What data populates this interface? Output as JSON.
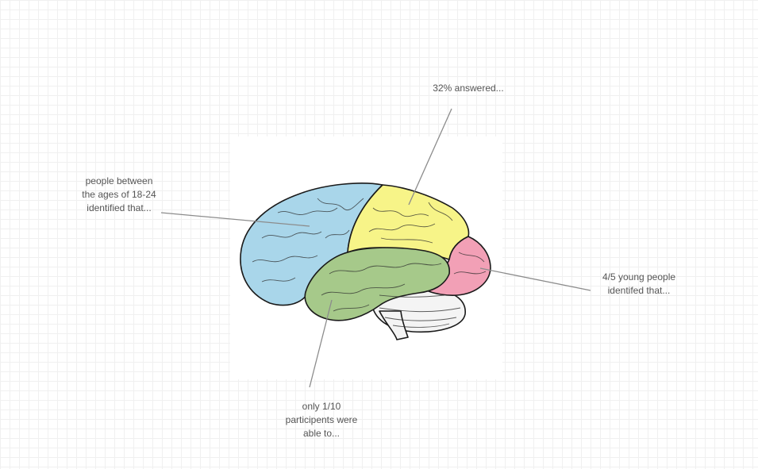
{
  "annotations": {
    "top": "32% answered...",
    "left": "people between\nthe ages of 18-24\nidentified that...",
    "right": "4/5 young people\nidentifed that...",
    "bottom": "only 1/10\nparticipents were\nable to..."
  },
  "colors": {
    "frontal_lobe": "#a9d6ea",
    "parietal_lobe": "#f7f488",
    "temporal_lobe": "#a6c98a",
    "occipital_lobe": "#f2a0b6",
    "cerebellum": "#f4f4f4",
    "outline": "#1a1a1a",
    "connector": "#8c8c8c"
  },
  "icons": {
    "diagram": "brain-illustration"
  }
}
